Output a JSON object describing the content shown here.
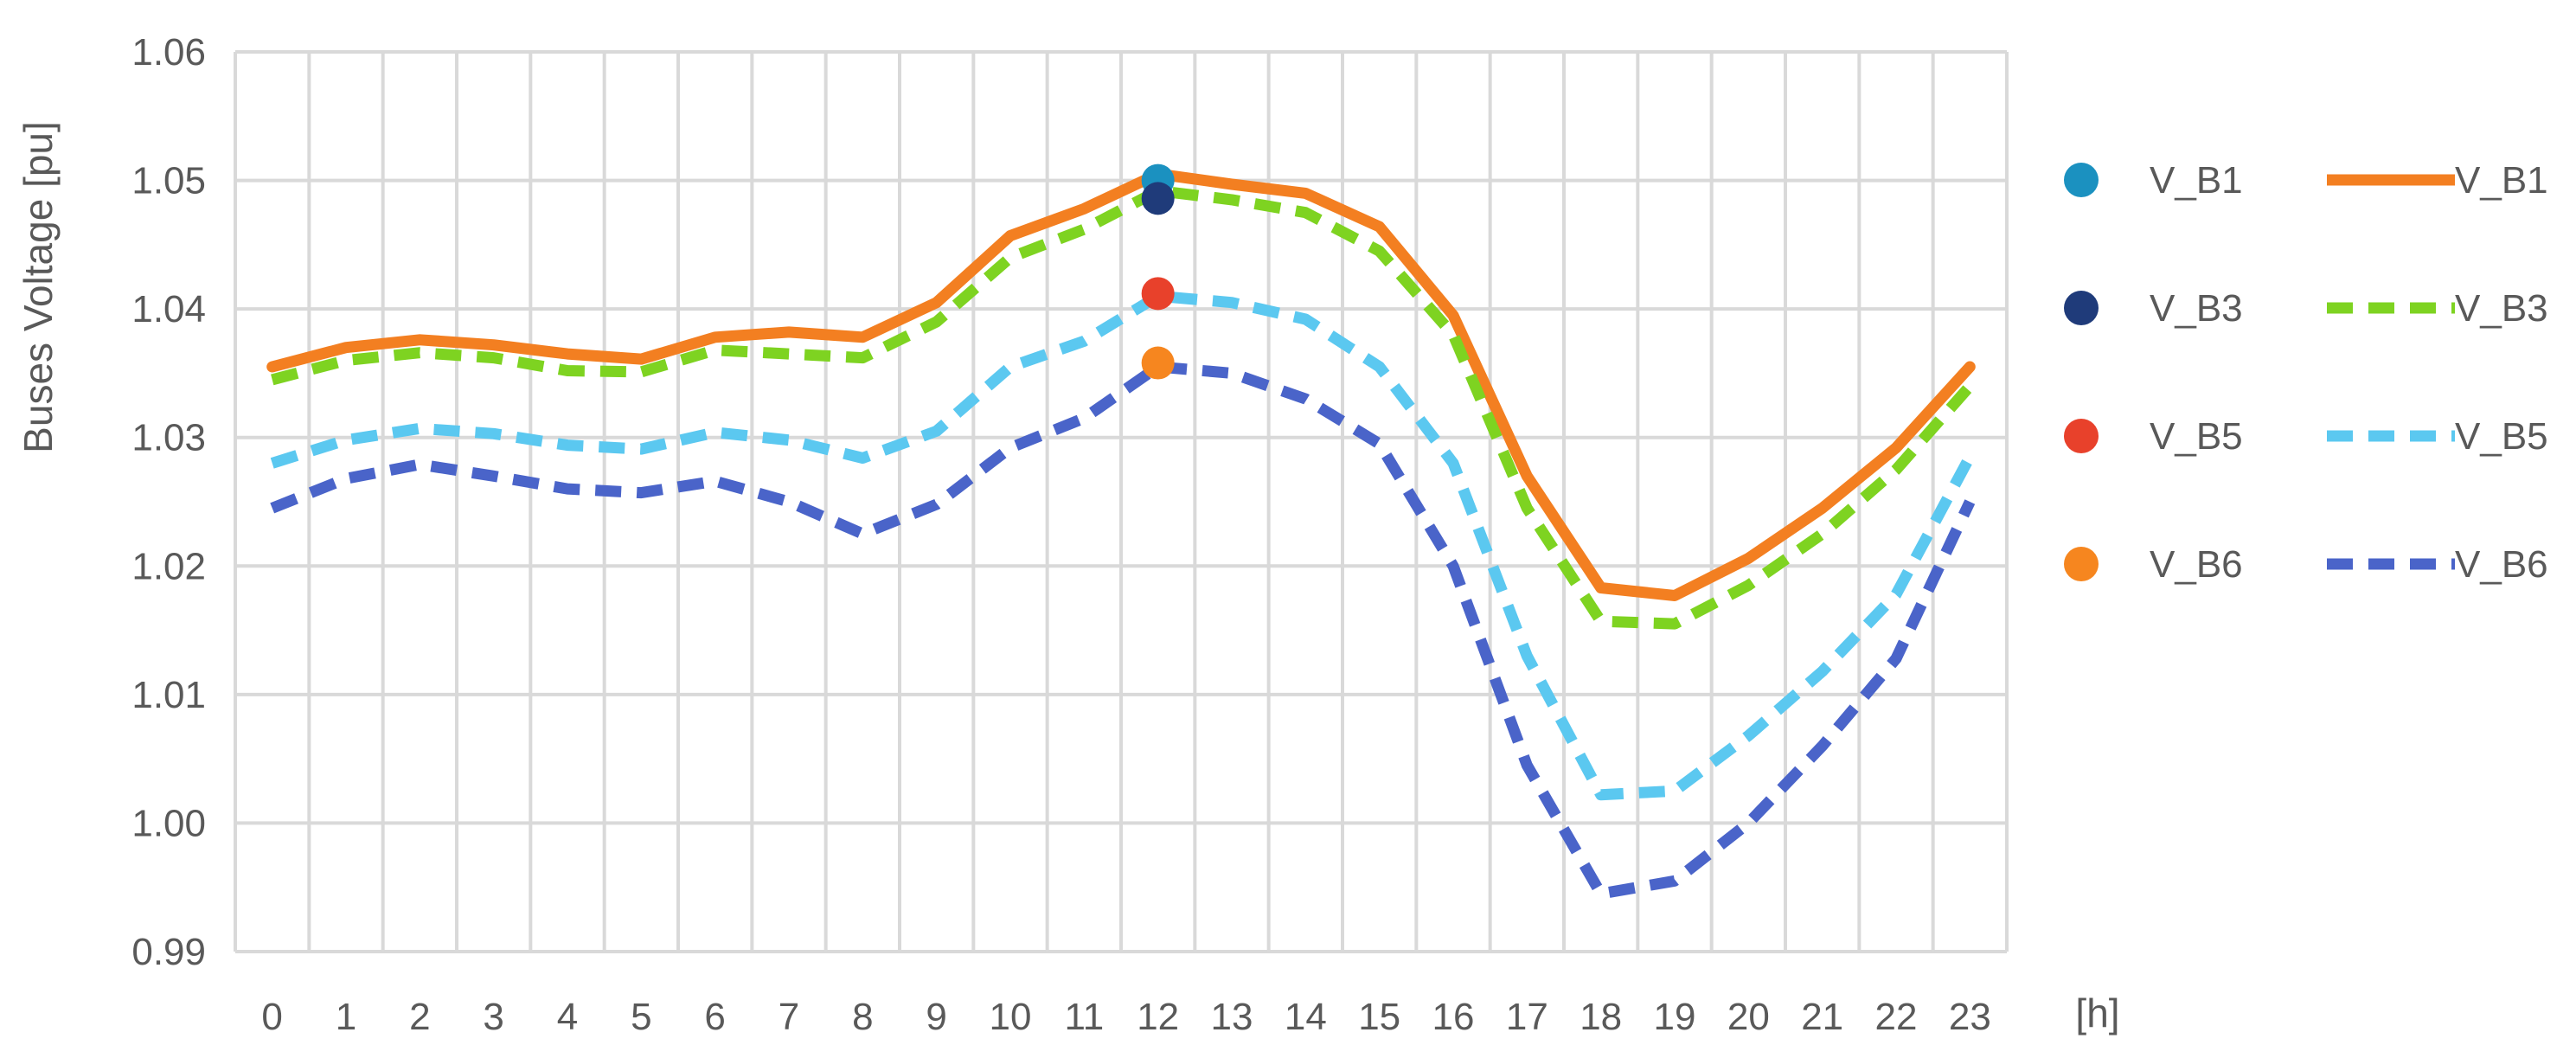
{
  "chart_data": {
    "type": "line",
    "title": "",
    "xlabel": "[h]",
    "ylabel": "Buses Voltage [pu]",
    "x": [
      0,
      1,
      2,
      3,
      4,
      5,
      6,
      7,
      8,
      9,
      10,
      11,
      12,
      13,
      14,
      15,
      16,
      17,
      18,
      19,
      20,
      21,
      22,
      23
    ],
    "x_ticks": [
      "0",
      "1",
      "2",
      "3",
      "4",
      "5",
      "6",
      "7",
      "8",
      "9",
      "10",
      "11",
      "12",
      "13",
      "14",
      "15",
      "16",
      "17",
      "18",
      "19",
      "20",
      "21",
      "22",
      "23"
    ],
    "ylim": [
      0.99,
      1.06
    ],
    "y_ticks": [
      "0.99",
      "1.00",
      "1.01",
      "1.02",
      "1.03",
      "1.04",
      "1.05",
      "1.06"
    ],
    "y_tick_values": [
      0.99,
      1.0,
      1.01,
      1.02,
      1.03,
      1.04,
      1.05,
      1.06
    ],
    "grid": true,
    "legend_position": "right",
    "series": [
      {
        "name": "V_B1",
        "style": "solid",
        "color": "#F37F21",
        "values": [
          1.0355,
          1.037,
          1.0376,
          1.0372,
          1.0365,
          1.0361,
          1.0378,
          1.0382,
          1.0378,
          1.0405,
          1.0457,
          1.0478,
          1.0505,
          1.0497,
          1.049,
          1.0464,
          1.0395,
          1.027,
          1.0183,
          1.0177,
          1.0206,
          1.0245,
          1.0292,
          1.0355
        ]
      },
      {
        "name": "V_B3",
        "style": "dash",
        "color": "#7ED321",
        "values": [
          1.0345,
          1.036,
          1.0366,
          1.0362,
          1.0352,
          1.0351,
          1.0368,
          1.0365,
          1.0362,
          1.039,
          1.044,
          1.0462,
          1.0492,
          1.0485,
          1.0475,
          1.0445,
          1.038,
          1.0245,
          1.0157,
          1.0155,
          1.0185,
          1.0225,
          1.0275,
          1.034
        ]
      },
      {
        "name": "V_B5",
        "style": "dash",
        "color": "#5BC8F0",
        "values": [
          1.028,
          1.0298,
          1.0307,
          1.0303,
          1.0294,
          1.0291,
          1.0304,
          1.0298,
          1.0284,
          1.0305,
          1.0355,
          1.0375,
          1.041,
          1.0405,
          1.0392,
          1.0355,
          1.028,
          1.013,
          1.0022,
          1.0025,
          1.0068,
          1.0118,
          1.0178,
          1.0285
        ]
      },
      {
        "name": "V_B6",
        "style": "dash",
        "color": "#4A64C9",
        "values": [
          1.0245,
          1.0268,
          1.0279,
          1.027,
          1.026,
          1.0257,
          1.0266,
          1.025,
          1.0225,
          1.0248,
          1.0292,
          1.0315,
          1.0355,
          1.035,
          1.033,
          1.0295,
          1.02,
          1.0045,
          0.9945,
          0.9955,
          1.0,
          1.006,
          1.0128,
          1.025
        ]
      }
    ],
    "markers": [
      {
        "name": "V_B1",
        "x": 12,
        "y": 1.05,
        "color": "#1B91C0"
      },
      {
        "name": "V_B3",
        "x": 12,
        "y": 1.0486,
        "color": "#1F3B7A"
      },
      {
        "name": "V_B5",
        "x": 12,
        "y": 1.0412,
        "color": "#E8412B"
      },
      {
        "name": "V_B6",
        "x": 12,
        "y": 1.0358,
        "color": "#F6861F"
      }
    ]
  }
}
